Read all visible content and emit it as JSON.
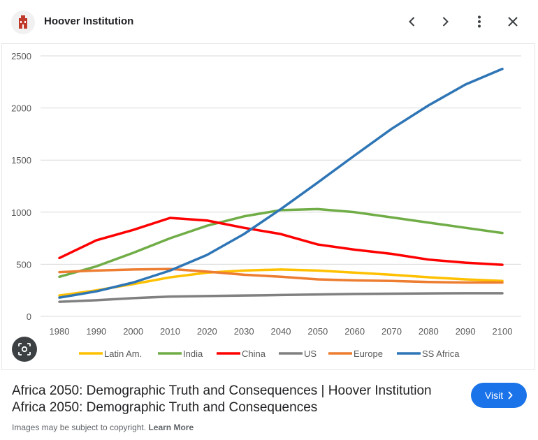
{
  "header": {
    "site_name": "Hoover Institution",
    "icons": [
      "hoover-logo",
      "chevron-left",
      "chevron-right",
      "more-vert",
      "close"
    ]
  },
  "chart_data": {
    "type": "line",
    "x": [
      1980,
      1990,
      2000,
      2010,
      2020,
      2030,
      2040,
      2050,
      2060,
      2070,
      2080,
      2090,
      2100
    ],
    "ylim": [
      0,
      2500
    ],
    "yticks": [
      0,
      500,
      1000,
      1500,
      2000,
      2500
    ],
    "grid": true,
    "legend_position": "bottom",
    "series": [
      {
        "name": "Latin Am.",
        "color": "#FFC000",
        "values": [
          200,
          250,
          310,
          375,
          420,
          440,
          450,
          440,
          420,
          400,
          375,
          355,
          340
        ]
      },
      {
        "name": "India",
        "color": "#70AD47",
        "values": [
          380,
          480,
          610,
          750,
          870,
          960,
          1020,
          1030,
          1000,
          950,
          900,
          850,
          800
        ]
      },
      {
        "name": "China",
        "color": "#FF0000",
        "values": [
          560,
          730,
          830,
          945,
          920,
          850,
          790,
          690,
          640,
          600,
          545,
          515,
          495
        ]
      },
      {
        "name": "US",
        "color": "#808080",
        "values": [
          140,
          155,
          175,
          190,
          195,
          200,
          205,
          210,
          215,
          218,
          220,
          222,
          222
        ]
      },
      {
        "name": "Europe",
        "color": "#ED7D31",
        "values": [
          425,
          440,
          450,
          455,
          430,
          400,
          380,
          355,
          345,
          340,
          330,
          325,
          325
        ]
      },
      {
        "name": "SS Africa",
        "color": "#2E75B6",
        "values": [
          180,
          240,
          325,
          440,
          590,
          790,
          1030,
          1285,
          1545,
          1800,
          2025,
          2225,
          2375
        ]
      }
    ]
  },
  "result": {
    "title_line1": "Africa 2050: Demographic Truth and Consequences | Hoover Institution",
    "title_line2": "Africa 2050: Demographic Truth and Consequences",
    "visit_label": "Visit",
    "copyright_text": "Images may be subject to copyright.",
    "learn_more": "Learn More"
  }
}
